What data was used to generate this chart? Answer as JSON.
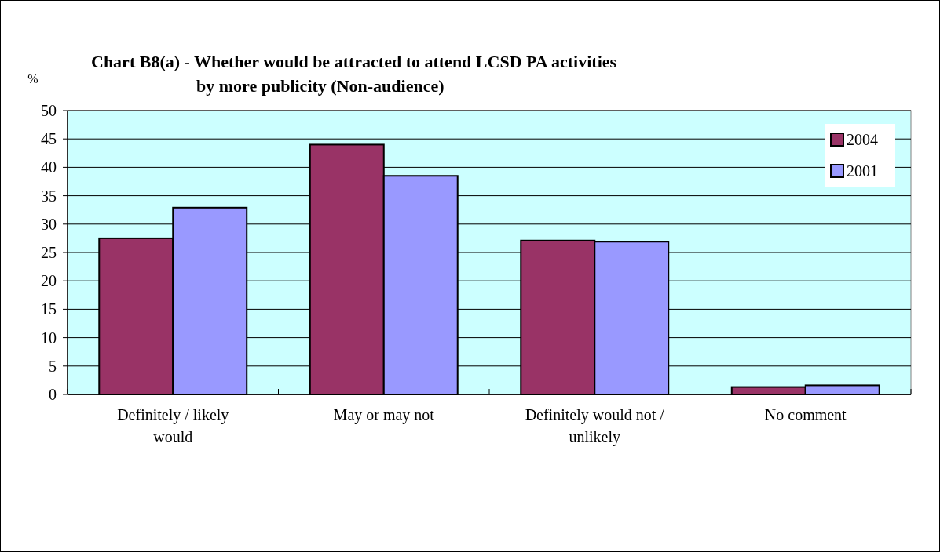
{
  "chart_data": {
    "type": "bar",
    "title": "Chart B8(a) - Whether would be attracted to attend LCSD PA activities\nby more publicity (Non-audience)",
    "ylabel": "%",
    "categories": [
      "Definitely / likely would",
      "May or may not",
      "Definitely would not / unlikely",
      "No comment"
    ],
    "series": [
      {
        "name": "2004",
        "color": "#993366",
        "values": [
          27.5,
          44.0,
          27.1,
          1.3
        ]
      },
      {
        "name": "2001",
        "color": "#9999ff",
        "values": [
          32.9,
          38.5,
          26.9,
          1.6
        ]
      }
    ],
    "ylim": [
      0,
      50
    ],
    "yticks": [
      0,
      5,
      10,
      15,
      20,
      25,
      30,
      35,
      40,
      45,
      50
    ],
    "grid": "y",
    "legend": "top right"
  }
}
